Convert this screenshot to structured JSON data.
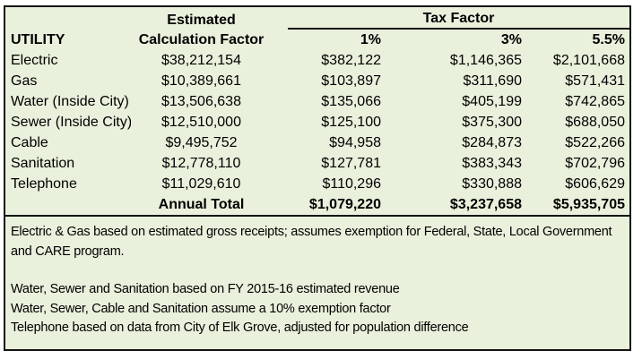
{
  "table": {
    "header": {
      "estimated_label": "Estimated",
      "tax_factor_label": "Tax Factor",
      "utility_label": "UTILITY",
      "calc_factor_label": "Calculation Factor",
      "rate_1": "1%",
      "rate_3": "3%",
      "rate_55": "5.5%"
    },
    "rows": [
      {
        "utility": "Electric",
        "calc_factor": "$38,212,154",
        "r1": "$382,122",
        "r3": "$1,146,365",
        "r55": "$2,101,668"
      },
      {
        "utility": "Gas",
        "calc_factor": "$10,389,661",
        "r1": "$103,897",
        "r3": "$311,690",
        "r55": "$571,431"
      },
      {
        "utility": "Water (Inside City)",
        "calc_factor": "$13,506,638",
        "r1": "$135,066",
        "r3": "$405,199",
        "r55": "$742,865"
      },
      {
        "utility": "Sewer (Inside City)",
        "calc_factor": "$12,510,000",
        "r1": "$125,100",
        "r3": "$375,300",
        "r55": "$688,050"
      },
      {
        "utility": "Cable",
        "calc_factor": "$9,495,752",
        "r1": "$94,958",
        "r3": "$284,873",
        "r55": "$522,266"
      },
      {
        "utility": "Sanitation",
        "calc_factor": "$12,778,110",
        "r1": "$127,781",
        "r3": "$383,343",
        "r55": "$702,796"
      },
      {
        "utility": "Telephone",
        "calc_factor": "$11,029,610",
        "r1": "$110,296",
        "r3": "$330,888",
        "r55": "$606,629"
      }
    ],
    "total": {
      "label": "Annual Total",
      "r1": "$1,079,220",
      "r3": "$3,237,658",
      "r55": "$5,935,705"
    }
  },
  "notes": [
    "Electric & Gas based on estimated gross receipts; assumes exemption for Federal, State, Local Government and CARE program.",
    "Water, Sewer and Sanitation based on FY 2015-16 estimated revenue",
    "Water, Sewer, Cable and Sanitation assume a 10% exemption factor",
    "Telephone based on data from City of Elk Grove, adjusted for population difference"
  ],
  "colors": {
    "background": "#E9F0DC",
    "border": "#141414",
    "text": "#000000"
  },
  "chart_data": {
    "type": "table",
    "title": "Utility Tax Factor Calculation",
    "columns": [
      "UTILITY",
      "Estimated Calculation Factor",
      "1%",
      "3%",
      "5.5%"
    ],
    "rows": [
      [
        "Electric",
        38212154,
        382122,
        1146365,
        2101668
      ],
      [
        "Gas",
        10389661,
        103897,
        311690,
        571431
      ],
      [
        "Water (Inside City)",
        13506638,
        135066,
        405199,
        742865
      ],
      [
        "Sewer (Inside City)",
        12510000,
        125100,
        375300,
        688050
      ],
      [
        "Cable",
        9495752,
        94958,
        284873,
        522266
      ],
      [
        "Sanitation",
        12778110,
        127781,
        383343,
        702796
      ],
      [
        "Telephone",
        11029610,
        110296,
        330888,
        606629
      ],
      [
        "Annual Total",
        null,
        1079220,
        3237658,
        5935705
      ]
    ]
  }
}
